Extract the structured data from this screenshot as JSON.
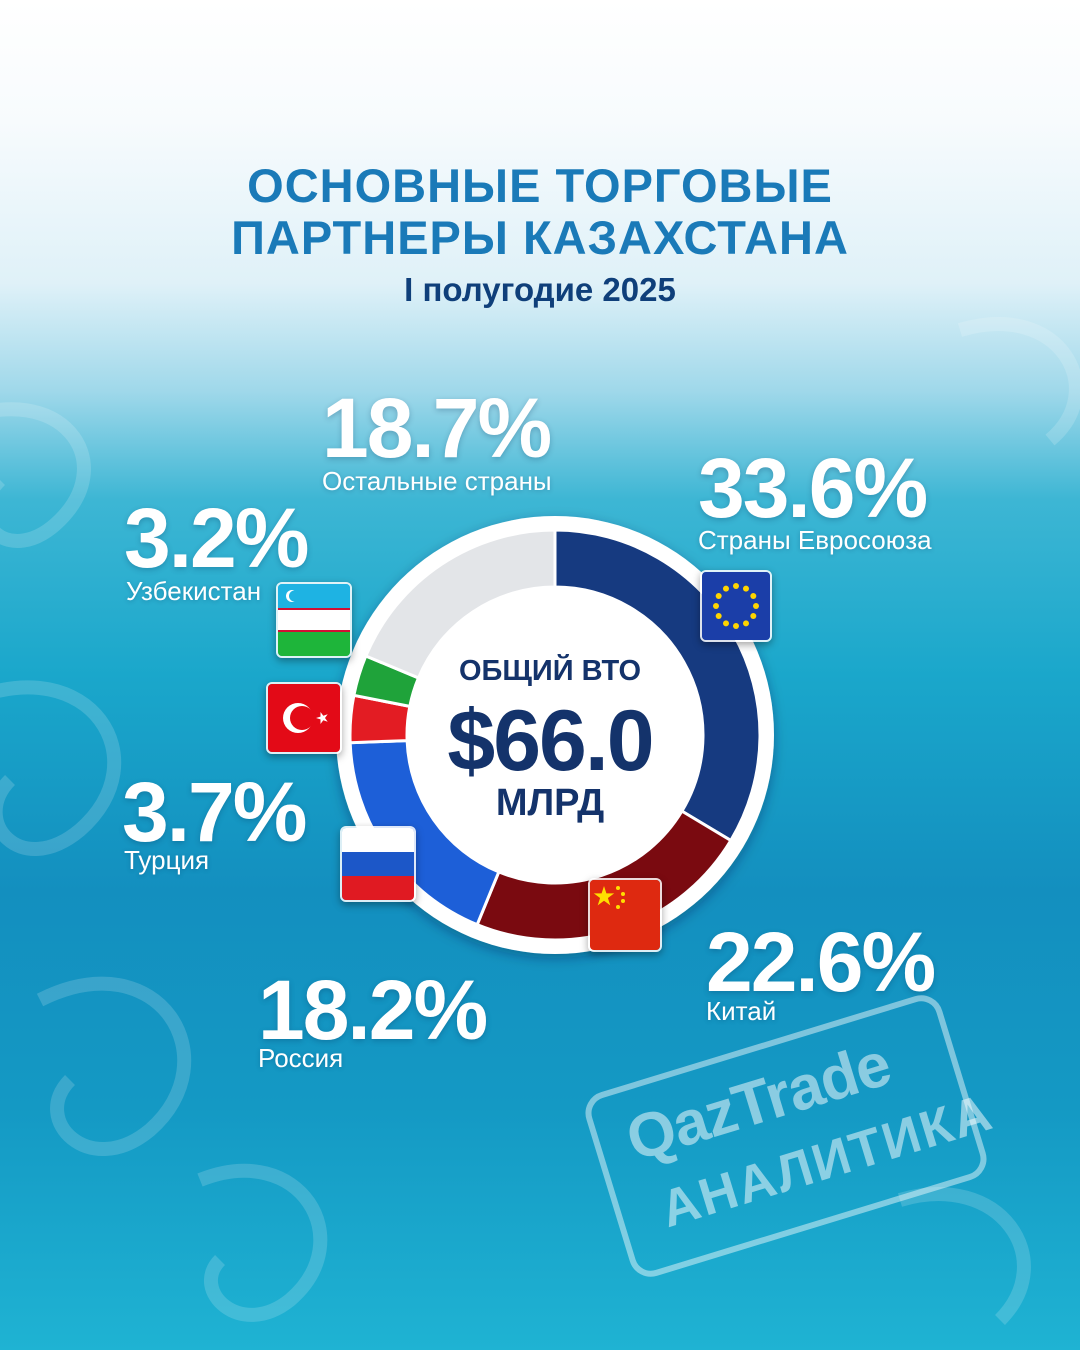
{
  "header": {
    "title_line1": "ОСНОВНЫЕ ТОРГОВЫЕ",
    "title_line2": "ПАРТНЕРЫ КАЗАХСТАНА",
    "subtitle": "I полугодие 2025"
  },
  "center": {
    "label": "ОБЩИЙ ВТО",
    "value": "$66.0",
    "unit": "МЛРД"
  },
  "colors": {
    "eu": "#163a80",
    "china": "#7a0a10",
    "russia": "#1d5fd8",
    "turkey": "#e31c23",
    "uzbekistan": "#1fa33a",
    "others": "#e3e5e8"
  },
  "chart_data": {
    "type": "pie",
    "title": "ОСНОВНЫЕ ТОРГОВЫЕ ПАРТНЕРЫ КАЗАХСТАНА",
    "subtitle": "I полугодие 2025",
    "unit": "%",
    "total": "$66.0 МЛРД",
    "slices": [
      {
        "label": "Страны Евросоюза",
        "value": 33.6,
        "display": "33.6%",
        "color": "#163a80",
        "flag_icon": "eu-flag-icon"
      },
      {
        "label": "Китай",
        "value": 22.6,
        "display": "22.6%",
        "color": "#7a0a10",
        "flag_icon": "china-flag-icon"
      },
      {
        "label": "Россия",
        "value": 18.2,
        "display": "18.2%",
        "color": "#1d5fd8",
        "flag_icon": "russia-flag-icon"
      },
      {
        "label": "Турция",
        "value": 3.7,
        "display": "3.7%",
        "color": "#e31c23",
        "flag_icon": "turkey-flag-icon"
      },
      {
        "label": "Узбекистан",
        "value": 3.2,
        "display": "3.2%",
        "color": "#1fa33a",
        "flag_icon": "uzbekistan-flag-icon"
      },
      {
        "label": "Остальные страны",
        "value": 18.7,
        "display": "18.7%",
        "color": "#e3e5e8"
      }
    ]
  },
  "watermark": {
    "brand": "QazTrade",
    "sub": "АНАЛИТИКА"
  }
}
